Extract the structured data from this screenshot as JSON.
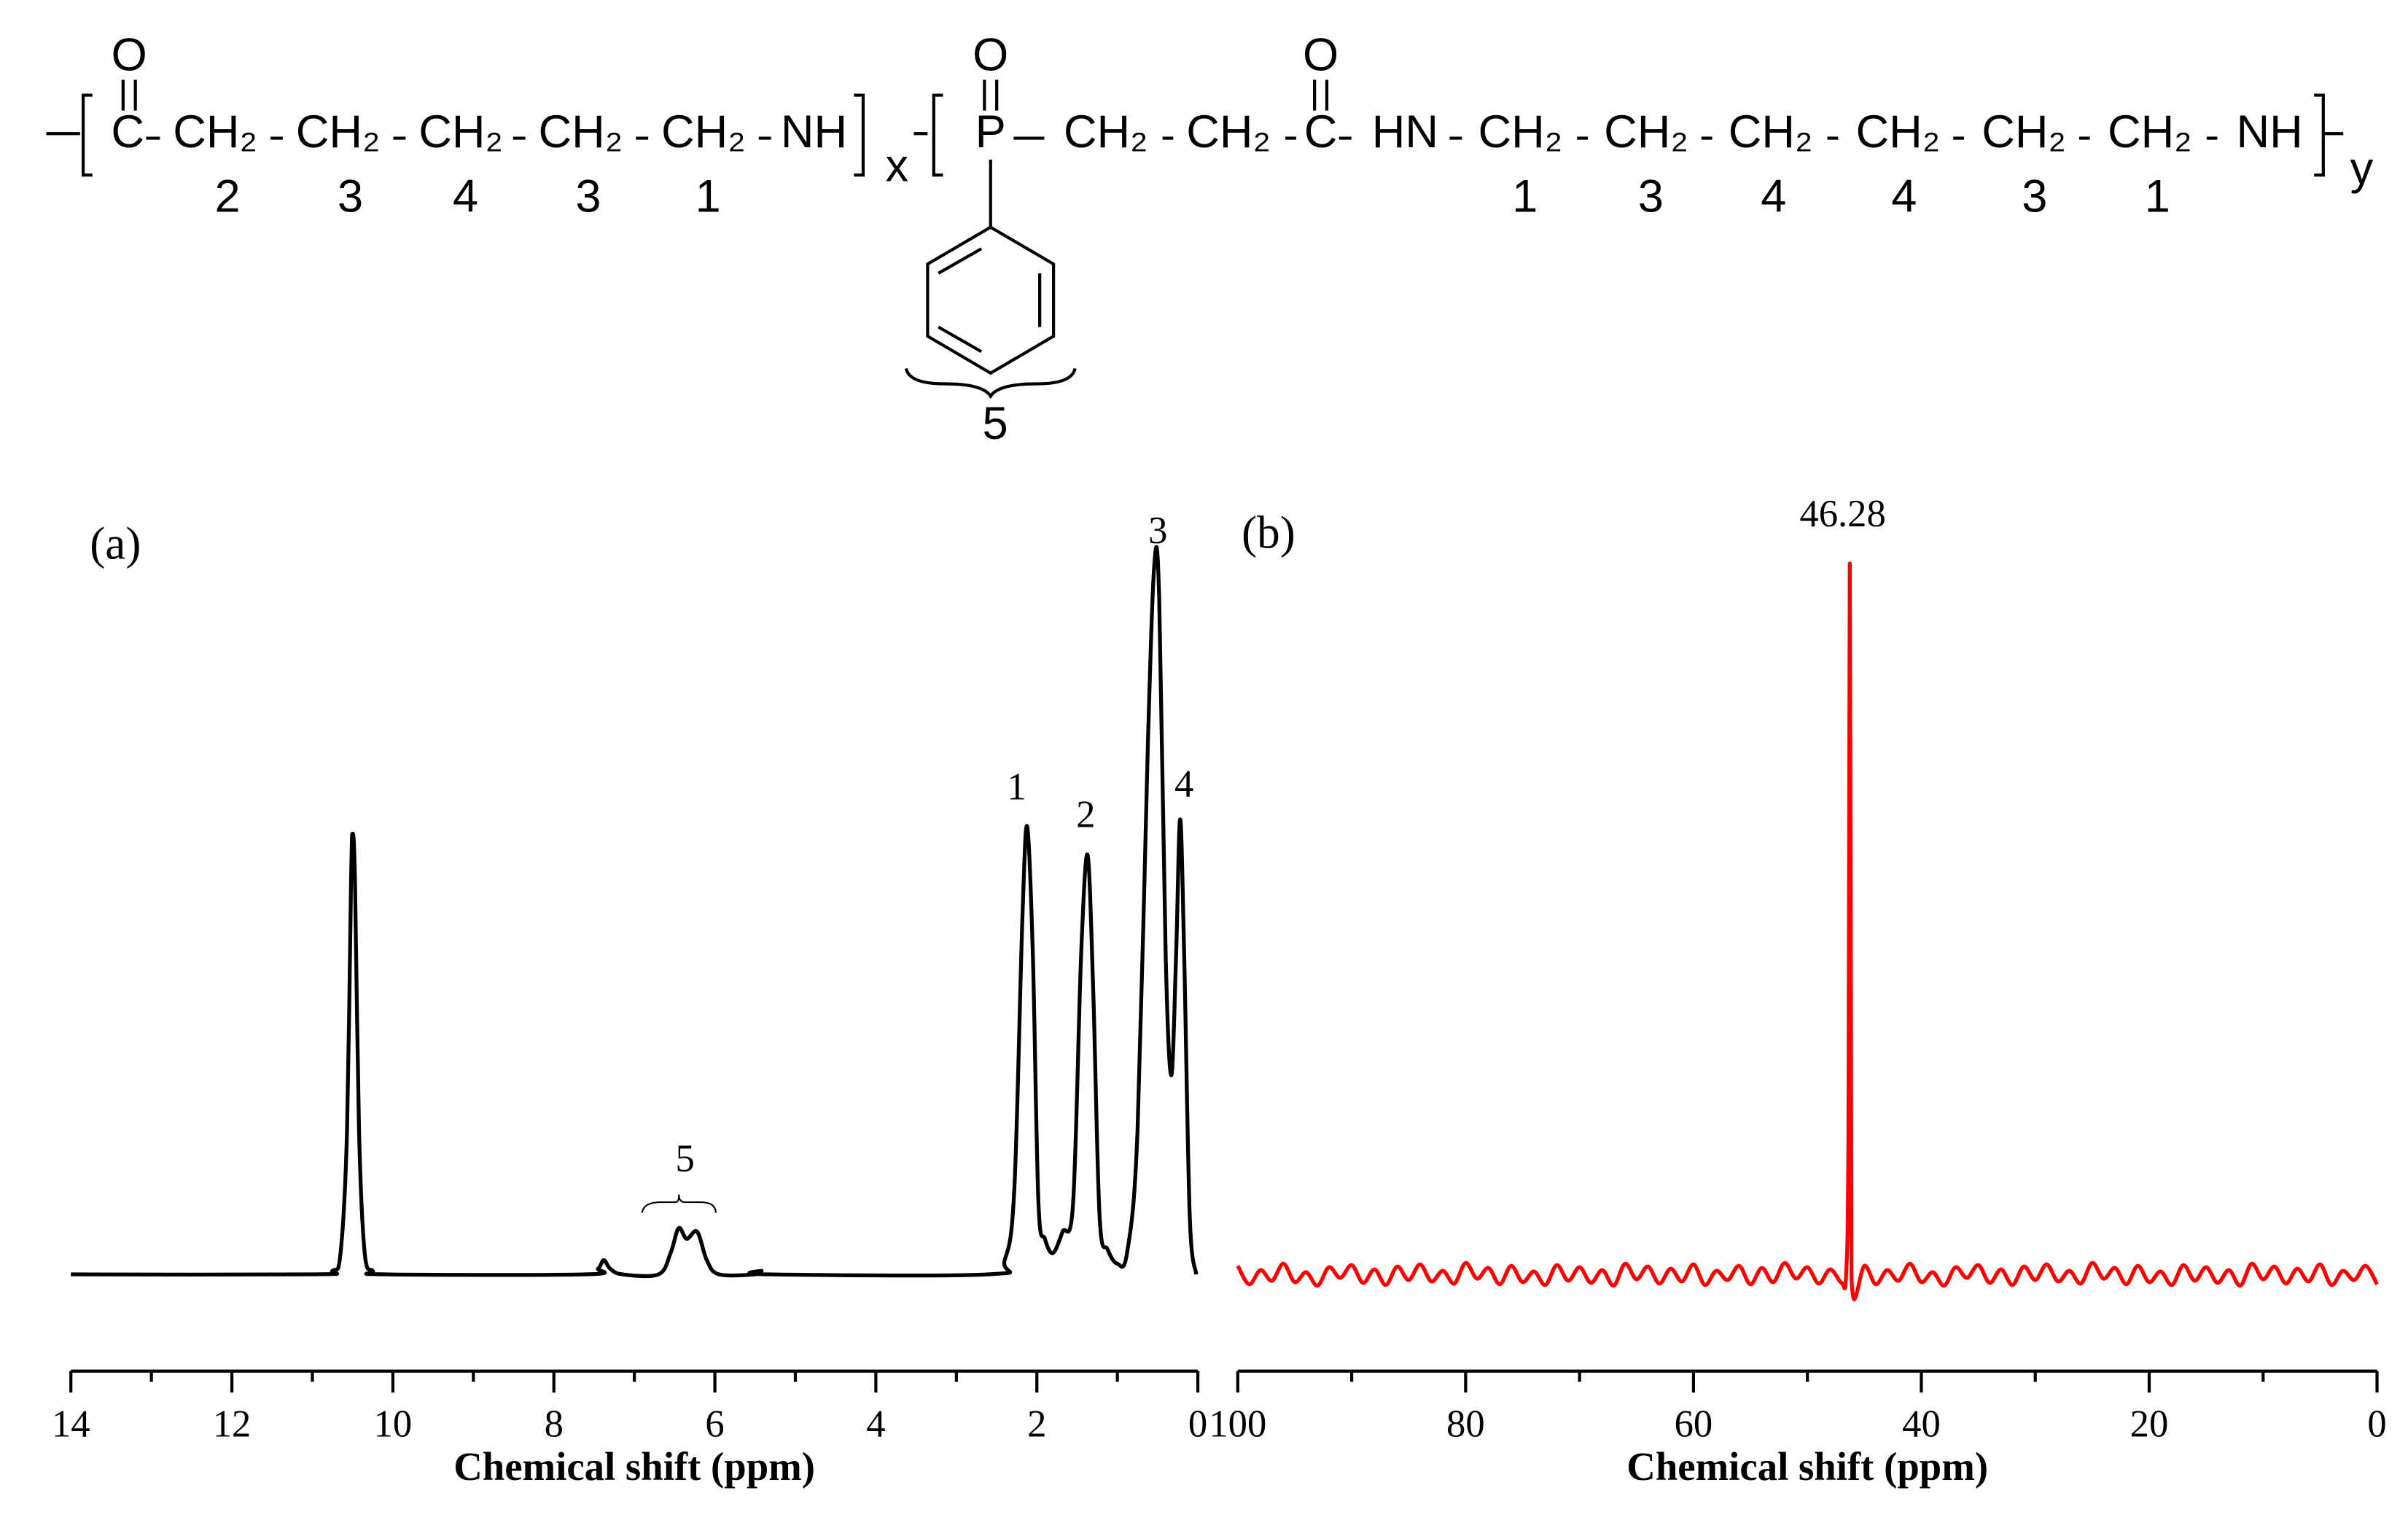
{
  "structure": {
    "left_unit": {
      "carbonyl_o": "O",
      "groups": [
        "C",
        "CH₂",
        "CH₂",
        "CH₂",
        "CH₂",
        "CH₂",
        "NH"
      ],
      "numbers": [
        "2",
        "3",
        "4",
        "3",
        "1"
      ],
      "repeat": "x"
    },
    "right_unit": {
      "oxygens": [
        "O",
        "O"
      ],
      "groups": [
        "P",
        "CH₂",
        "CH₂",
        "C",
        "HN",
        "CH₂",
        "CH₂",
        "CH₂",
        "CH₂",
        "CH₂",
        "CH₂",
        "NH"
      ],
      "numbers": [
        "1",
        "3",
        "4",
        "4",
        "3",
        "1"
      ],
      "repeat": "y",
      "phenyl_label": "5"
    }
  },
  "chart_data": [
    {
      "type": "line",
      "panel_label": "(a)",
      "xlabel": "Chemical shift (ppm)",
      "xlim": [
        14,
        0
      ],
      "xticks": [
        14,
        12,
        10,
        8,
        6,
        4,
        2,
        0
      ],
      "xminorticks": [
        13,
        11,
        9,
        7,
        5,
        3,
        1
      ],
      "ylim": [
        0,
        100
      ],
      "annotations": [
        "1",
        "2",
        "3",
        "4",
        "5"
      ],
      "series": [
        {
          "color": "#000000",
          "x": [
            14,
            11,
            10.75,
            10.65,
            10.57,
            10.52,
            10.5,
            10.47,
            10.42,
            10.35,
            10.25,
            10.1,
            7.6,
            7.45,
            7.38,
            7.3,
            7.15,
            6.7,
            6.55,
            6.45,
            6.35,
            6.22,
            6.1,
            5.95,
            5.5,
            5.42,
            5.35,
            2.6,
            2.4,
            2.28,
            2.18,
            2.12,
            2.05,
            1.98,
            1.9,
            1.8,
            1.68,
            1.55,
            1.45,
            1.37,
            1.3,
            1.22,
            1.12,
            1.0,
            0.88,
            0.75,
            0.62,
            0.54,
            0.48,
            0.4,
            0.33,
            0.27,
            0.22,
            0.17,
            0.1,
            0.02
          ],
          "values": [
            0,
            0,
            0.5,
            3,
            20,
            55,
            62,
            55,
            20,
            3,
            0.5,
            0,
            0,
            0.8,
            2,
            0.8,
            0,
            0,
            3,
            6.5,
            5,
            6,
            2,
            0,
            0,
            0.5,
            0,
            0,
            2,
            12,
            50,
            63,
            45,
            10,
            5,
            3,
            6,
            10,
            45,
            59,
            40,
            8,
            3.5,
            1.5,
            3,
            20,
            75,
            100,
            95,
            45,
            28,
            45,
            64,
            45,
            8,
            0
          ]
        }
      ]
    },
    {
      "type": "line",
      "panel_label": "(b)",
      "xlabel": "Chemical shift (ppm)",
      "xlim": [
        100,
        0
      ],
      "xticks": [
        100,
        80,
        60,
        40,
        20,
        0
      ],
      "xminorticks": [
        90,
        70,
        50,
        30,
        10
      ],
      "ylim": [
        0,
        100
      ],
      "annotations": [
        "46.28"
      ],
      "series": [
        {
          "color": "#ff0000",
          "x": [
            100,
            99,
            98,
            97,
            96,
            95,
            94,
            93,
            92,
            91,
            90,
            89,
            88,
            87,
            86,
            85,
            84,
            83,
            82,
            81,
            80,
            79,
            78,
            77,
            76,
            75,
            74,
            73,
            72,
            71,
            70,
            69,
            68,
            67,
            66,
            65,
            64,
            63,
            62,
            61,
            60,
            59,
            58,
            57,
            56,
            55,
            54,
            53,
            52,
            51,
            50,
            49,
            48,
            47,
            46.6,
            46.4,
            46.28,
            46.15,
            46.0,
            45,
            44,
            43,
            42,
            41,
            40,
            39,
            38,
            37,
            36,
            35,
            34,
            33,
            32,
            31,
            30,
            29,
            28,
            27,
            26,
            25,
            24,
            23,
            22,
            21,
            20,
            19,
            18,
            17,
            16,
            15,
            14,
            13,
            12,
            11,
            10,
            9,
            8,
            7,
            6,
            5,
            4,
            3,
            2,
            1,
            0
          ],
          "values": [
            1.2,
            -1.4,
            0.6,
            -0.9,
            1.5,
            -1.1,
            0.3,
            -1.6,
            1.0,
            -0.5,
            1.3,
            -1.2,
            0.7,
            -1.5,
            1.1,
            -0.8,
            1.4,
            -1.0,
            0.5,
            -1.3,
            1.6,
            -0.6,
            0.9,
            -1.4,
            1.2,
            -1.1,
            0.4,
            -1.5,
            1.3,
            -0.9,
            1.0,
            -1.2,
            0.6,
            -1.6,
            1.5,
            -0.7,
            1.1,
            -1.3,
            0.8,
            -1.0,
            1.4,
            -1.5,
            0.5,
            -0.8,
            1.2,
            -1.4,
            0.9,
            -1.1,
            1.6,
            -0.6,
            1.0,
            -1.3,
            0.7,
            -1.2,
            0,
            20,
            100,
            15,
            -3,
            1.2,
            -1.4,
            0.6,
            -0.9,
            1.5,
            -1.1,
            0.3,
            -1.6,
            1.0,
            -0.5,
            1.3,
            -1.2,
            0.7,
            -1.5,
            1.1,
            -0.8,
            1.4,
            -1.0,
            0.5,
            -1.3,
            1.6,
            -0.6,
            0.9,
            -1.4,
            1.2,
            -1.1,
            0.4,
            -1.5,
            1.3,
            -0.9,
            1.0,
            -1.2,
            0.6,
            -1.6,
            1.5,
            -0.7,
            1.1,
            -1.3,
            0.8,
            -1.0,
            1.4,
            -1.5,
            0.5,
            -0.8,
            1.2,
            -1.4
          ]
        }
      ]
    }
  ]
}
